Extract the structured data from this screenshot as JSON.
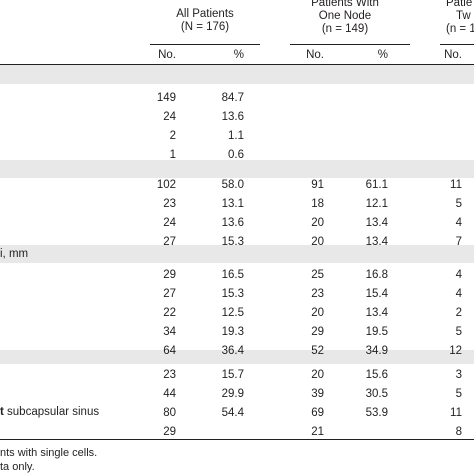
{
  "header": {
    "all_patients": {
      "line1": "All Patients",
      "line2": "(N = 176)"
    },
    "one_node": {
      "line1": "Patients With",
      "line2": "One Node",
      "line3": "(n = 149)"
    },
    "two_nodes": {
      "line1": "Patie",
      "line2": "Tw",
      "line3": "(n = 1"
    },
    "sub": {
      "no1": "No.",
      "pct1": "%",
      "no2": "No.",
      "pct2": "%",
      "no3": "No."
    }
  },
  "labels": {
    "row_diameter": "i, mm",
    "row_sinus_prefix": "t",
    "row_sinus_rest": " subcapsular sinus"
  },
  "rows": [
    {
      "section": 1,
      "c1": "149",
      "c2": "84.7",
      "c3": "",
      "c4": "",
      "c5": ""
    },
    {
      "section": 1,
      "c1": "24",
      "c2": "13.6",
      "c3": "",
      "c4": "",
      "c5": ""
    },
    {
      "section": 1,
      "c1": "2",
      "c2": "1.1",
      "c3": "",
      "c4": "",
      "c5": ""
    },
    {
      "section": 1,
      "c1": "1",
      "c2": "0.6",
      "c3": "",
      "c4": "",
      "c5": ""
    },
    {
      "section": 2,
      "c1": "102",
      "c2": "58.0",
      "c3": "91",
      "c4": "61.1",
      "c5": "11"
    },
    {
      "section": 2,
      "c1": "23",
      "c2": "13.1",
      "c3": "18",
      "c4": "12.1",
      "c5": "5"
    },
    {
      "section": 2,
      "c1": "24",
      "c2": "13.6",
      "c3": "20",
      "c4": "13.4",
      "c5": "4"
    },
    {
      "section": 2,
      "c1": "27",
      "c2": "15.3",
      "c3": "20",
      "c4": "13.4",
      "c5": "7"
    },
    {
      "section": 3,
      "c1": "29",
      "c2": "16.5",
      "c3": "25",
      "c4": "16.8",
      "c5": "4"
    },
    {
      "section": 3,
      "c1": "27",
      "c2": "15.3",
      "c3": "23",
      "c4": "15.4",
      "c5": "4"
    },
    {
      "section": 3,
      "c1": "22",
      "c2": "12.5",
      "c3": "20",
      "c4": "13.4",
      "c5": "2"
    },
    {
      "section": 3,
      "c1": "34",
      "c2": "19.3",
      "c3": "29",
      "c4": "19.5",
      "c5": "5"
    },
    {
      "section": 3,
      "c1": "64",
      "c2": "36.4",
      "c3": "52",
      "c4": "34.9",
      "c5": "12"
    },
    {
      "section": 4,
      "c1": "23",
      "c2": "15.7",
      "c3": "20",
      "c4": "15.6",
      "c5": "3"
    },
    {
      "section": 4,
      "c1": "44",
      "c2": "29.9",
      "c3": "39",
      "c4": "30.5",
      "c5": "5"
    },
    {
      "section": 4,
      "c1": "80",
      "c2": "54.4",
      "c3": "69",
      "c4": "53.9",
      "c5": "11"
    },
    {
      "section": 4,
      "c1": "29",
      "c2": "",
      "c3": "21",
      "c4": "",
      "c5": "8"
    }
  ],
  "footnotes": {
    "line1": "nts with single cells.",
    "line2": "ta only."
  }
}
